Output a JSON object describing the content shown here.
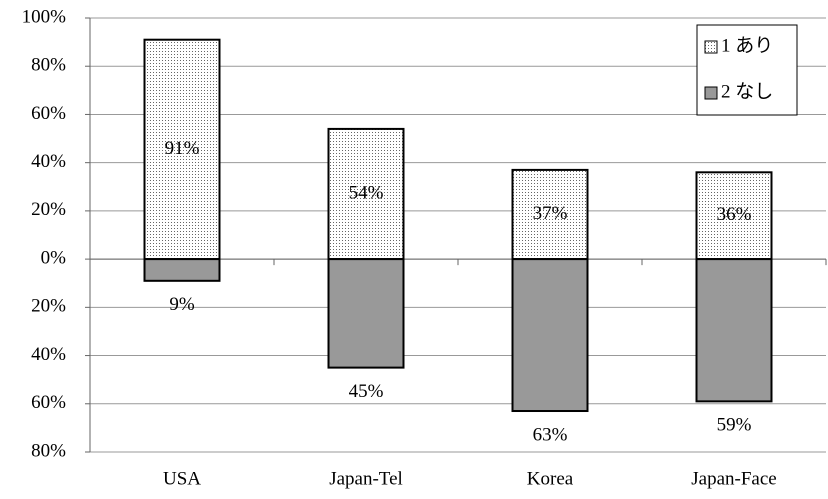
{
  "chart_data": {
    "type": "bar",
    "categories": [
      "USA",
      "Japan-Tel",
      "Korea",
      "Japan-Face"
    ],
    "series": [
      {
        "name": "1 あり",
        "color": "#ffffff",
        "values": [
          91,
          54,
          37,
          36
        ],
        "value_labels": [
          "91%",
          "54%",
          "37%",
          "36%"
        ]
      },
      {
        "name": "2 なし",
        "color": "#999999",
        "values": [
          -9,
          -45,
          -63,
          -59
        ],
        "value_labels": [
          "9%",
          "45%",
          "63%",
          "59%"
        ]
      }
    ],
    "ylim": [
      -80,
      100
    ],
    "yticks": [
      {
        "value": -80,
        "label": "80%"
      },
      {
        "value": -60,
        "label": "60%"
      },
      {
        "value": -40,
        "label": "40%"
      },
      {
        "value": -20,
        "label": "20%"
      },
      {
        "value": 0,
        "label": "0%"
      },
      {
        "value": 20,
        "label": "20%"
      },
      {
        "value": 40,
        "label": "40%"
      },
      {
        "value": 60,
        "label": "60%"
      },
      {
        "value": 80,
        "label": "80%"
      },
      {
        "value": 100,
        "label": "100%"
      }
    ],
    "grid": true,
    "legend": "top-right"
  }
}
